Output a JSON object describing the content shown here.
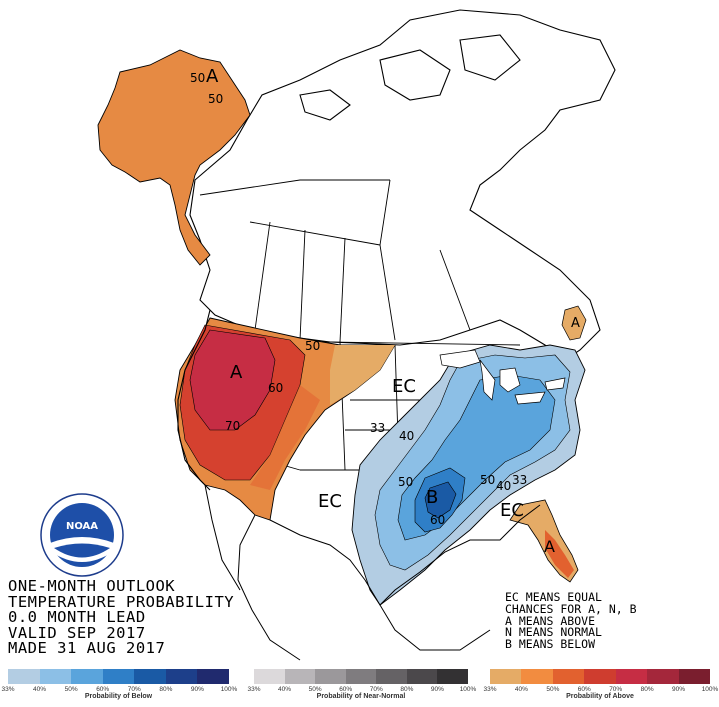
{
  "title_lines": [
    "ONE-MONTH OUTLOOK",
    "TEMPERATURE PROBABILITY",
    "0.0 MONTH LEAD",
    "VALID SEP 2017",
    "MADE 31 AUG 2017"
  ],
  "ec_note_lines": [
    "EC MEANS EQUAL",
    "CHANCES FOR A, N, B",
    "A MEANS ABOVE",
    "N MEANS NORMAL",
    "B MEANS BELOW"
  ],
  "map_labels": {
    "alaska_A": "A",
    "alaska_50a": "50",
    "alaska_50b": "50",
    "west_A": "A",
    "west_70": "70",
    "west_60": "60",
    "west_50": "50",
    "east_EC": "EC",
    "south_EC": "EC",
    "se_EC": "EC",
    "maine_A": "A",
    "florida_A": "A",
    "below_33": "33",
    "below_40": "40",
    "below_50a": "50",
    "below_50b": "50",
    "below_B": "B",
    "below_60": "60",
    "below_33b": "33",
    "below_40b": "40"
  },
  "legend": {
    "below": {
      "caption": "Probability of Below",
      "ticks": [
        "33%",
        "40%",
        "50%",
        "60%",
        "70%",
        "80%",
        "90%",
        "100%"
      ],
      "colors": [
        "#b3cde3",
        "#8cbfe6",
        "#5aa4dc",
        "#2f7fc7",
        "#1a5aa5",
        "#1d3f8a",
        "#202a6e"
      ]
    },
    "near": {
      "caption": "Probability of Near-Normal",
      "ticks": [
        "33%",
        "40%",
        "50%",
        "60%",
        "70%",
        "80%",
        "90%",
        "100%"
      ],
      "colors": [
        "#dcd9db",
        "#b8b5b8",
        "#9b989b",
        "#7f7c7f",
        "#656265",
        "#4b484b",
        "#333133"
      ]
    },
    "above": {
      "caption": "Probability of Above",
      "ticks": [
        "33%",
        "40%",
        "50%",
        "60%",
        "70%",
        "80%",
        "90%",
        "100%"
      ],
      "colors": [
        "#e5ab66",
        "#f28c40",
        "#e2612f",
        "#cf3d2f",
        "#c62d44",
        "#a4273b",
        "#7a1e2e"
      ]
    }
  },
  "logo_text": "NOAA"
}
